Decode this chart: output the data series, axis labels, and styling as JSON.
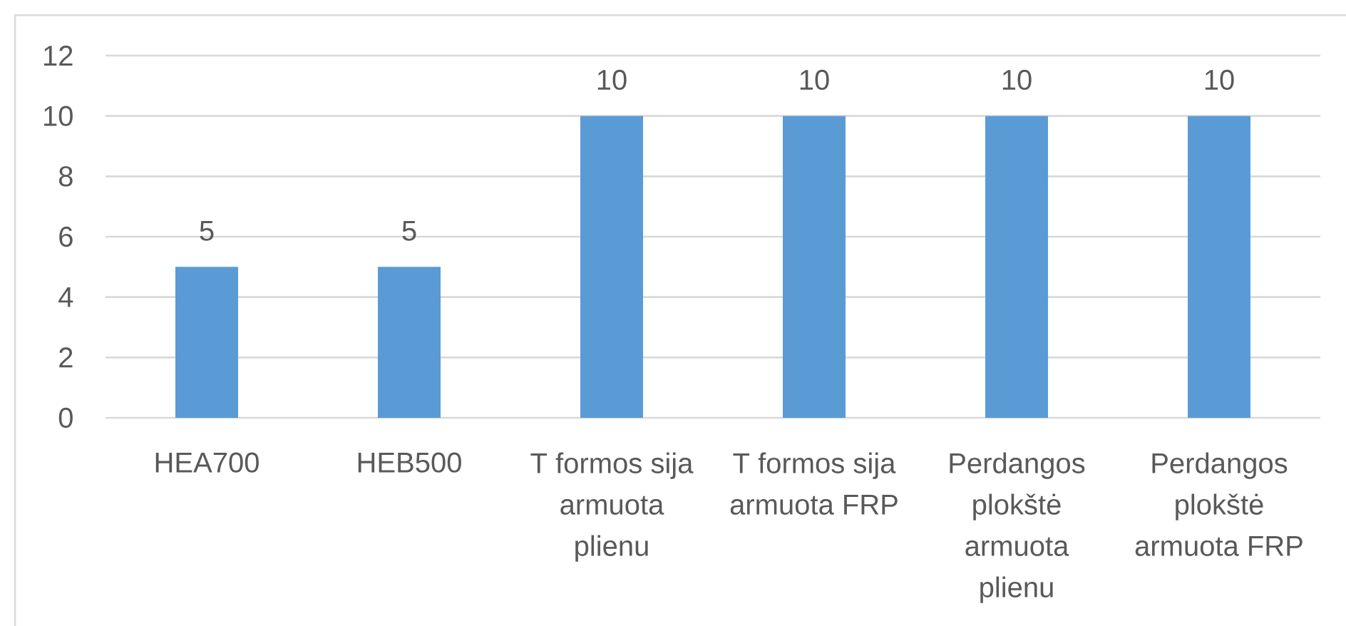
{
  "chart_data": {
    "type": "bar",
    "categories": [
      "HEA700",
      "HEB500",
      "T formos sija armuota plienu",
      "T formos sija armuota FRP",
      "Perdangos plokštė armuota plienu",
      "Perdangos plokštė armuota FRP"
    ],
    "values": [
      5,
      5,
      10,
      10,
      10,
      10
    ],
    "color": "#5b9bd5",
    "ylim": [
      0,
      12
    ],
    "yticks": [
      0,
      2,
      4,
      6,
      8,
      10,
      12
    ],
    "grid": "y",
    "data_labels": true
  }
}
